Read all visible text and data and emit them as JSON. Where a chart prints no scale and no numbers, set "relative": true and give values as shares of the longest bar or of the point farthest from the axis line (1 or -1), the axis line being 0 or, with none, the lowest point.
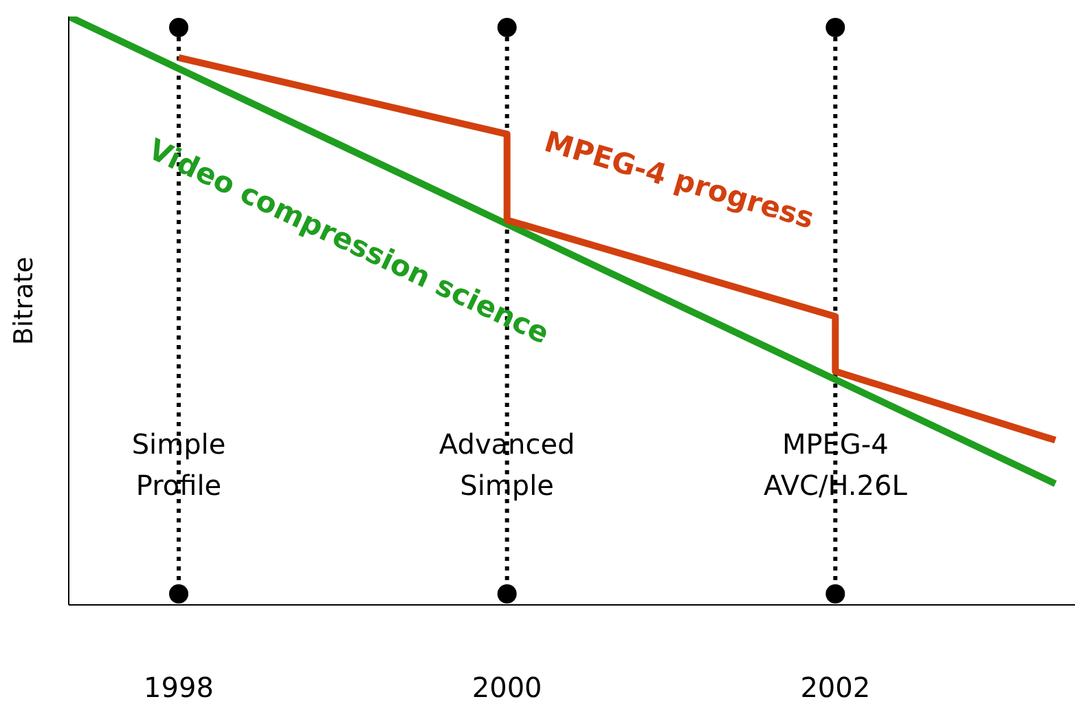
{
  "chart_data": {
    "type": "line",
    "ylabel": "Bitrate",
    "relative": true,
    "xlim": [
      1997.33,
      2003.46
    ],
    "xticks": [
      1998,
      2000,
      2002
    ],
    "grid": false,
    "legend": false,
    "marker": "none",
    "line_style": "solid",
    "series": [
      {
        "name": "Video compression science",
        "color": "#1f9e1f",
        "x": [
          1997.33,
          2003.34
        ],
        "values": [
          1,
          0.206
        ]
      },
      {
        "name": "MPEG-4 progress",
        "color": "#d2400f",
        "x": [
          1998,
          2000,
          2000,
          2002,
          2002,
          2003.34
        ],
        "values": [
          0.93,
          0.8,
          0.654,
          0.49,
          0.397,
          0.28
        ]
      }
    ],
    "ref_lines": [
      {
        "axis": "x",
        "value": 1998,
        "label": "Simple Profile",
        "color": "#000000",
        "line_style": "dotted"
      },
      {
        "axis": "x",
        "value": 2000,
        "label": "Advanced Simple",
        "color": "#000000",
        "line_style": "dotted"
      },
      {
        "axis": "x",
        "value": 2002,
        "label": "MPEG-4 AVC/H.26L",
        "color": "#000000",
        "line_style": "dotted"
      }
    ]
  }
}
